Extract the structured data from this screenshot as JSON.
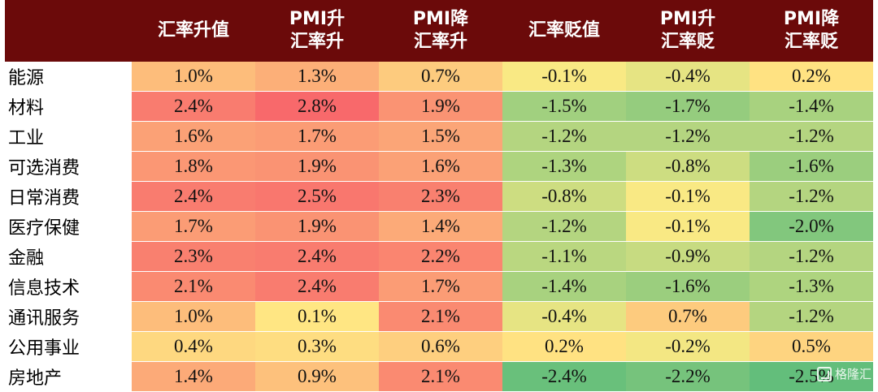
{
  "chart_data": {
    "type": "heatmap",
    "columns": [
      "汇率升值",
      "PMI升\n汇率升",
      "PMI降\n汇率升",
      "汇率贬值",
      "PMI升\n汇率贬",
      "PMI降\n汇率贬"
    ],
    "rows": [
      {
        "label": "能源",
        "values": [
          1.0,
          1.3,
          0.7,
          -0.1,
          -0.4,
          0.2
        ]
      },
      {
        "label": "材料",
        "values": [
          2.4,
          2.8,
          1.9,
          -1.5,
          -1.7,
          -1.4
        ]
      },
      {
        "label": "工业",
        "values": [
          1.6,
          1.7,
          1.5,
          -1.2,
          -1.2,
          -1.2
        ]
      },
      {
        "label": "可选消费",
        "values": [
          1.8,
          1.9,
          1.6,
          -1.3,
          -0.8,
          -1.6
        ]
      },
      {
        "label": "日常消费",
        "values": [
          2.4,
          2.5,
          2.3,
          -0.8,
          -0.1,
          -1.2
        ]
      },
      {
        "label": "医疗保健",
        "values": [
          1.7,
          1.9,
          1.4,
          -1.2,
          -0.1,
          -2.0
        ]
      },
      {
        "label": "金融",
        "values": [
          2.3,
          2.4,
          2.2,
          -1.1,
          -0.9,
          -1.2
        ]
      },
      {
        "label": "信息技术",
        "values": [
          2.1,
          2.4,
          1.7,
          -1.4,
          -1.6,
          -1.3
        ]
      },
      {
        "label": "通讯服务",
        "values": [
          1.0,
          0.1,
          2.1,
          -0.4,
          0.7,
          -1.2
        ]
      },
      {
        "label": "公用事业",
        "values": [
          0.4,
          0.3,
          0.6,
          0.2,
          -0.2,
          0.5
        ]
      },
      {
        "label": "房地产",
        "values": [
          1.4,
          0.9,
          2.1,
          -2.4,
          -2.2,
          -2.5
        ]
      }
    ],
    "value_unit": "%",
    "color_scale": {
      "min_color": "#63be7b",
      "mid_color": "#ffeb84",
      "max_color": "#f8696b",
      "min": -2.5,
      "max": 2.8
    }
  },
  "watermark": {
    "text": "格隆汇"
  }
}
